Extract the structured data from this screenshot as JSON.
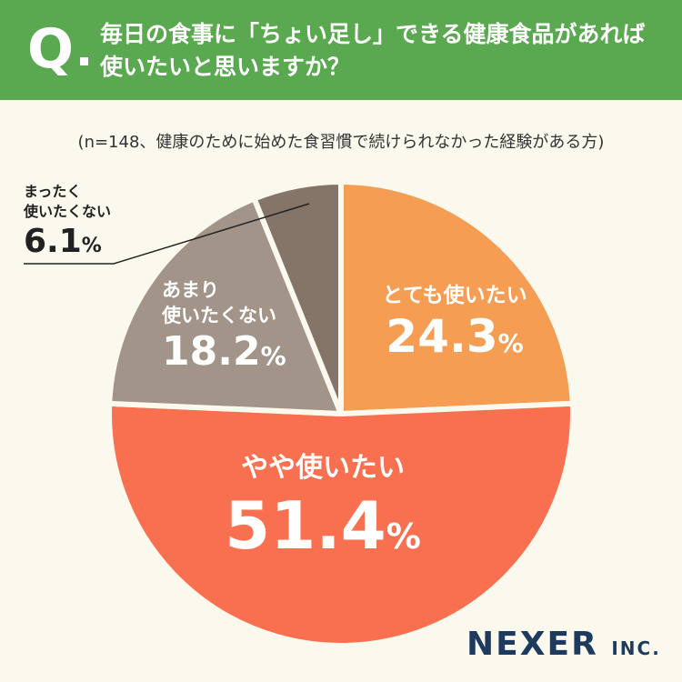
{
  "header": {
    "q_label": "Q",
    "question": "毎日の食事に「ちょい足し」できる健康食品があれば使いたいと思いますか？"
  },
  "subtitle": "(n=148、健康のために始めた食習慣で続けられなかった経験がある方)",
  "colors": {
    "header": "#5aa84f",
    "very": "#f59d52",
    "some": "#f8704f",
    "not": "#a29489",
    "none": "#857568"
  },
  "chart_data": {
    "type": "pie",
    "categories": [
      "とても使いたい",
      "やや使いたい",
      "あまり使いたくない",
      "まったく使いたくない"
    ],
    "values": [
      24.3,
      51.4,
      18.2,
      6.1
    ],
    "unit": "%",
    "display": [
      "24.3",
      "51.4",
      "18.2",
      "6.1"
    ],
    "labels_multiline": {
      "not": [
        "あまり",
        "使いたくない"
      ],
      "none": [
        "まったく",
        "使いたくない"
      ]
    }
  },
  "logo": {
    "main": "NEXER",
    "suffix": "INC."
  }
}
